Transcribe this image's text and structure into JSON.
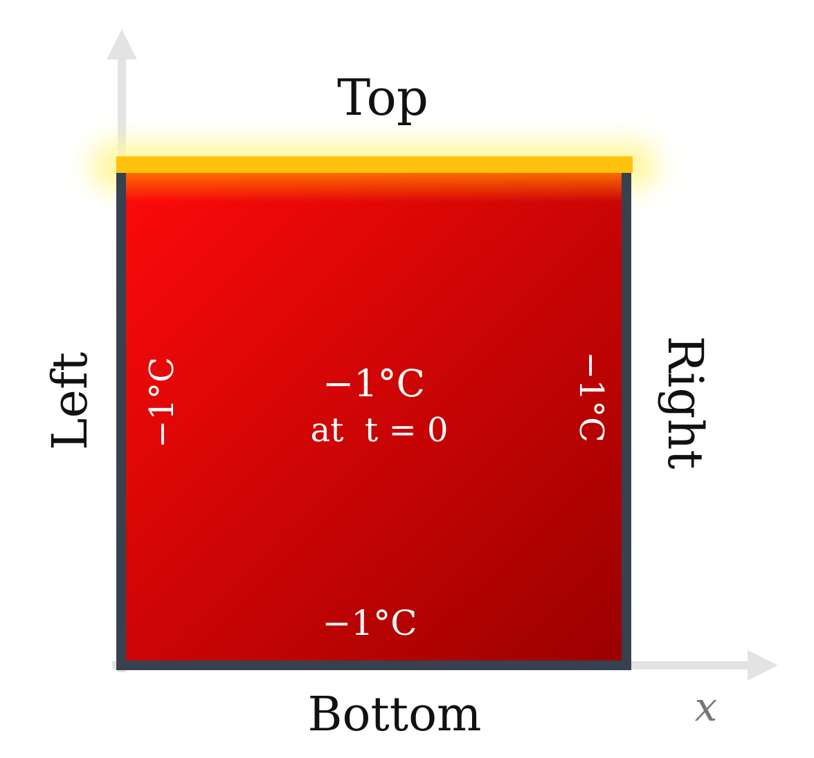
{
  "labels": {
    "top": "Top",
    "bottom": "Bottom",
    "left": "Left",
    "right": "Right",
    "x_axis": "x"
  },
  "temperatures": {
    "center": "−1°C",
    "center_time": "at  t = 0",
    "left": "−1°C",
    "right": "−1°C",
    "bottom": "−1°C"
  },
  "colors": {
    "plate_light": "#ff0a0a",
    "plate_dark": "#9a0000",
    "plate_border": "#37414f",
    "heated_edge": "#ffc20e",
    "glow": "#fff7a0",
    "axis": "#e3e3e3"
  }
}
